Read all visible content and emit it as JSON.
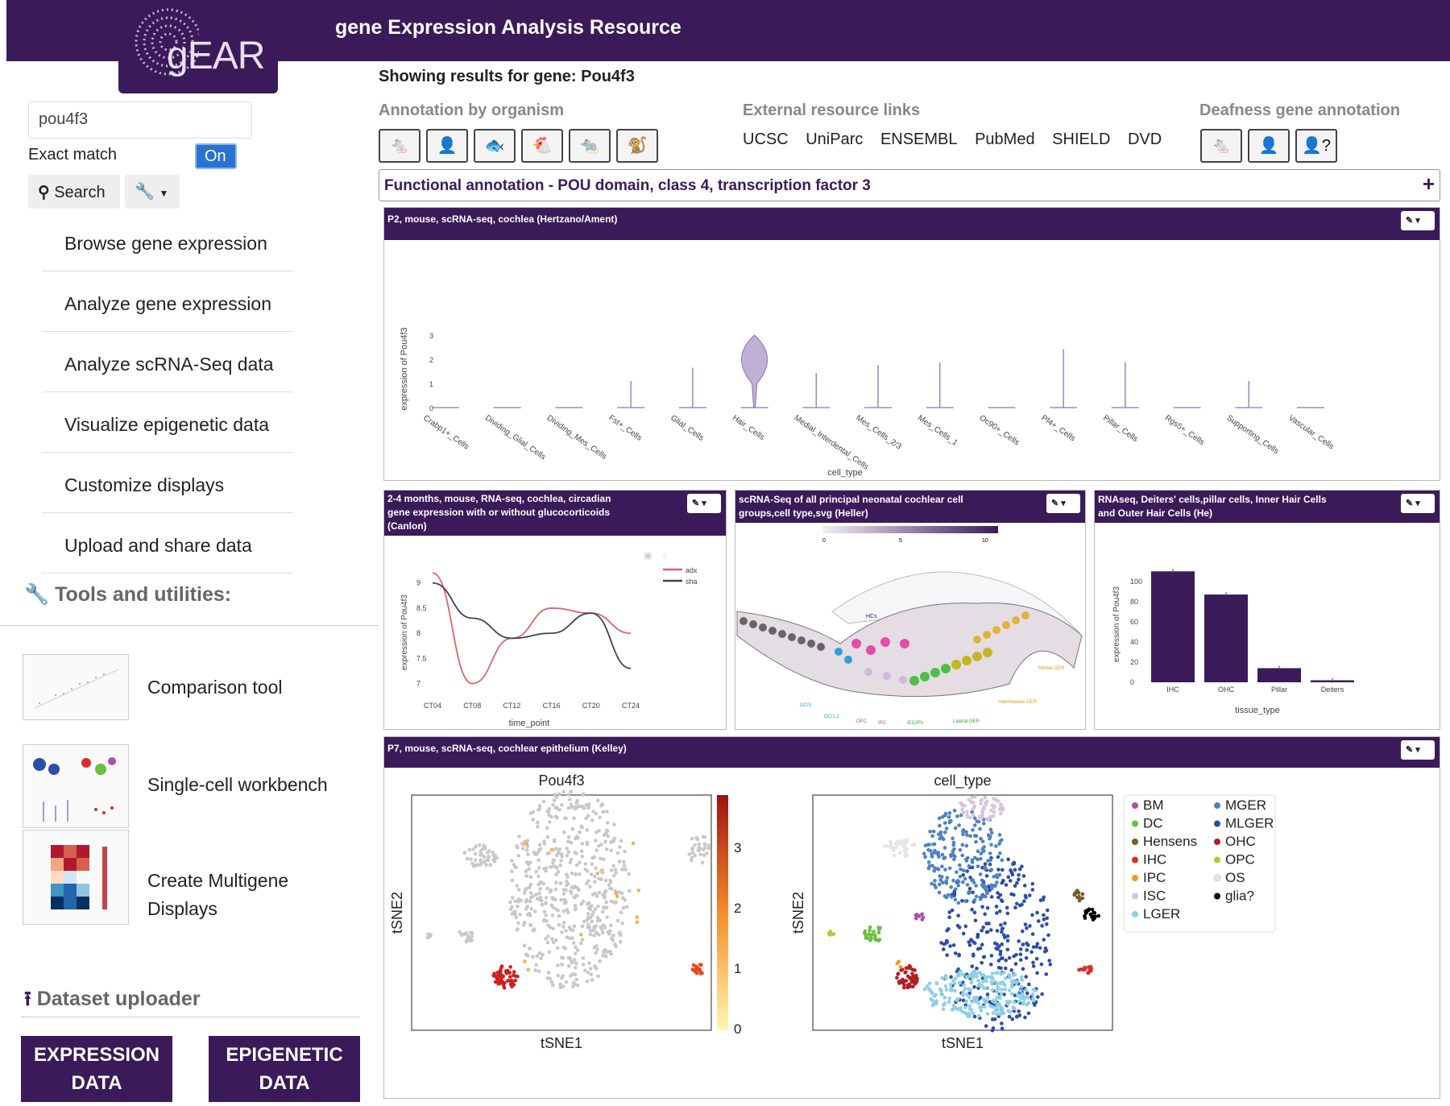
{
  "header": {
    "logo": "gEAR",
    "title": "gene Expression Analysis Resource"
  },
  "sidebar": {
    "search_value": "pou4f3",
    "exact_match_label": "Exact match",
    "toggle_label": "On",
    "search_label": "Search",
    "nav": [
      "Browse gene expression",
      "Analyze gene expression",
      "Analyze scRNA-Seq data",
      "Visualize epigenetic data",
      "Customize displays",
      "Upload and share data"
    ],
    "tools_heading": "Tools and utilities:",
    "tools": [
      "Comparison tool",
      "Single-cell workbench",
      "Create Multigene",
      "Displays"
    ],
    "uploader_heading": "Dataset uploader",
    "expression_btn": [
      "EXPRESSION",
      "DATA"
    ],
    "epigenetic_btn": [
      "EPIGENETIC",
      "DATA"
    ]
  },
  "main": {
    "results": "Showing results for gene: Pou4f3",
    "annotation_heading": "Annotation by organism",
    "external_heading": "External resource links",
    "deafness_heading": "Deafness gene annotation",
    "external_links": [
      "UCSC",
      "UniParc",
      "ENSEMBL",
      "PubMed",
      "SHIELD",
      "DVD"
    ],
    "functional": "Functional annotation - POU domain, class 4, transcription factor 3",
    "organism_icons": [
      "mouse-icon",
      "human-icon",
      "zebrafish-icon",
      "chicken-icon",
      "rat-icon",
      "monkey-icon"
    ],
    "deafness_icons": [
      "mouse-icon",
      "human-icon",
      "human-question-icon"
    ]
  },
  "panels": {
    "p1": "P2, mouse, scRNA-seq, cochlea (Hertzano/Ament)",
    "p2": [
      "2-4 months, mouse, RNA-seq, cochlea, circadian",
      "gene expression with or without glucocorticoids",
      "(Canlon)"
    ],
    "p3": [
      "scRNA-Seq of all principal neonatal cochlear cell",
      "groups,cell type,svg (Heller)"
    ],
    "p4": [
      "RNAseq, Deiters' cells,pillar cells, Inner Hair Cells",
      "and Outer Hair Cells (He)"
    ],
    "p5": "P7, mouse, scRNA-seq, cochlear epithelium (Kelley)"
  },
  "svg_labels": {
    "hcs": "HCs",
    "dc3": "DC/3",
    "dc12": "DC/1,2",
    "opc": "OPC",
    "ipc": "IPC",
    "iecifh": "IEC/IFh",
    "lateral_ger": "Lateral GER",
    "medial_ger": "Medial GER",
    "intermediate_ger": "Intermediate GER",
    "scale": [
      "0",
      "5",
      "10"
    ]
  },
  "chart_data": [
    {
      "type": "violin",
      "ylabel": "expression of Pou4f3",
      "xlabel": "cell_type",
      "categories": [
        "Crabp1+_Cells",
        "Dividing_Glial_Cells",
        "Dividing_Mes_Cells",
        "Fst+_Cells",
        "Glial_Cells",
        "Hair_Cells",
        "Medial_Interdental_Cells",
        "Mes_Cells_2/3",
        "Mes_Cells_1",
        "Oc90+_Cells",
        "Pf4+_Cells",
        "Pillar_Cells",
        "Rgs5+_Cells",
        "Supporting_Cells",
        "Vascular_Cells"
      ],
      "max_values": [
        0,
        0,
        0,
        1,
        1.5,
        3,
        1.3,
        1.6,
        1.7,
        0,
        2.2,
        1.7,
        0,
        1,
        0
      ],
      "yticks": [
        "0",
        "1",
        "2",
        "3"
      ],
      "ylim": [
        0,
        3
      ]
    },
    {
      "type": "line",
      "ylabel": "expression of Pou4f3",
      "xlabel": "time_point",
      "x": [
        "CT04",
        "CT08",
        "CT12",
        "CT16",
        "CT20",
        "CT24"
      ],
      "series": [
        {
          "name": "adx",
          "color": "#d9666a",
          "values": [
            9.2,
            7.0,
            7.9,
            8.5,
            8.4,
            8.0
          ]
        },
        {
          "name": "sha",
          "color": "#444444",
          "values": [
            9.0,
            8.3,
            7.9,
            8.0,
            8.4,
            7.3
          ]
        }
      ],
      "yticks": [
        "7",
        "7.5",
        "8",
        "8.5",
        "9"
      ],
      "ylim": [
        6.8,
        9.3
      ]
    },
    {
      "type": "bar",
      "ylabel": "expression of Pou4f3",
      "xlabel": "tissue_type",
      "categories": [
        "IHC",
        "OHC",
        "Pillar",
        "Deiters"
      ],
      "values": [
        110,
        87,
        14,
        2
      ],
      "yticks": [
        "0",
        "20",
        "40",
        "60",
        "80",
        "100"
      ],
      "ylim": [
        0,
        115
      ],
      "color": "#3b1a5a"
    },
    {
      "type": "scatter",
      "title": "Pou4f3",
      "xlabel": "tSNE1",
      "ylabel": "tSNE2",
      "colorbar_ticks": [
        "0",
        "1",
        "2",
        "3"
      ]
    },
    {
      "type": "scatter",
      "title": "cell_type",
      "xlabel": "tSNE1",
      "ylabel": "tSNE2",
      "legend": [
        {
          "name": "BM",
          "color": "#b04fa8"
        },
        {
          "name": "DC",
          "color": "#6cbf3a"
        },
        {
          "name": "Hensens",
          "color": "#7a5a26"
        },
        {
          "name": "IHC",
          "color": "#e02b2b"
        },
        {
          "name": "IPC",
          "color": "#f39a1e"
        },
        {
          "name": "ISC",
          "color": "#d8c3de"
        },
        {
          "name": "LGER",
          "color": "#8fd0e3"
        },
        {
          "name": "MGER",
          "color": "#4f82c1"
        },
        {
          "name": "MLGER",
          "color": "#2b4ea8"
        },
        {
          "name": "OHC",
          "color": "#b0201f"
        },
        {
          "name": "OPC",
          "color": "#b4c934"
        },
        {
          "name": "OS",
          "color": "#e5e5e5"
        },
        {
          "name": "glia?",
          "color": "#000000"
        }
      ]
    }
  ]
}
